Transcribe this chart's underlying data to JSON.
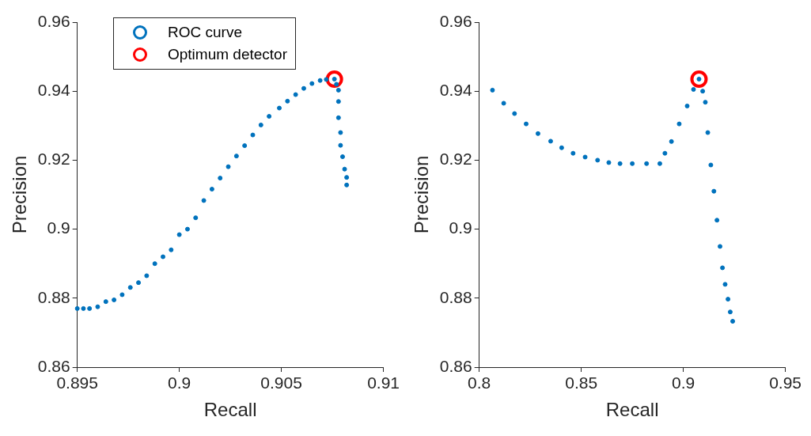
{
  "chart_data": [
    {
      "type": "scatter",
      "xlabel": "Recall",
      "ylabel": "Precision",
      "xlim": [
        0.895,
        0.91
      ],
      "xticks": [
        0.895,
        0.9,
        0.905,
        0.91
      ],
      "ylim": [
        0.86,
        0.96
      ],
      "yticks": [
        0.86,
        0.88,
        0.9,
        0.92,
        0.94,
        0.96
      ],
      "grid": false,
      "legend": "top left",
      "marker": "circle",
      "series": [
        {
          "name": "ROC curve",
          "color": "#0072bd",
          "x": [
            0.895,
            0.8953,
            0.8956,
            0.896,
            0.8964,
            0.8968,
            0.8972,
            0.8976,
            0.898,
            0.8984,
            0.8988,
            0.8992,
            0.8996,
            0.9,
            0.9004,
            0.9008,
            0.9012,
            0.9016,
            0.902,
            0.9024,
            0.9028,
            0.9032,
            0.9036,
            0.904,
            0.9044,
            0.9049,
            0.9053,
            0.9057,
            0.9061,
            0.9065,
            0.9069,
            0.9072,
            0.9076,
            0.9077,
            0.9078,
            0.9078,
            0.9078,
            0.9079,
            0.9079,
            0.908,
            0.9081,
            0.9082,
            0.9082
          ],
          "values": [
            0.877,
            0.877,
            0.877,
            0.8775,
            0.879,
            0.8795,
            0.881,
            0.8831,
            0.8845,
            0.8865,
            0.89,
            0.892,
            0.894,
            0.8984,
            0.9,
            0.9033,
            0.9083,
            0.9116,
            0.9148,
            0.9181,
            0.9212,
            0.9242,
            0.9273,
            0.9302,
            0.9327,
            0.9351,
            0.9371,
            0.939,
            0.9408,
            0.9422,
            0.9431,
            0.9434,
            0.9435,
            0.942,
            0.9403,
            0.937,
            0.9323,
            0.928,
            0.9243,
            0.921,
            0.9174,
            0.915,
            0.9128
          ]
        },
        {
          "name": "Optimum detector",
          "color": "#ff0000",
          "x": [
            0.9076
          ],
          "values": [
            0.9435
          ]
        }
      ]
    },
    {
      "type": "scatter",
      "xlabel": "Recall",
      "ylabel": "Precision",
      "xlim": [
        0.8,
        0.95
      ],
      "xticks": [
        0.8,
        0.85,
        0.9,
        0.95
      ],
      "ylim": [
        0.86,
        0.96
      ],
      "yticks": [
        0.86,
        0.88,
        0.9,
        0.92,
        0.94,
        0.96
      ],
      "grid": false,
      "marker": "circle",
      "series": [
        {
          "color": "#0072bd",
          "x": [
            0.8065,
            0.812,
            0.8173,
            0.823,
            0.8288,
            0.835,
            0.8404,
            0.846,
            0.8519,
            0.858,
            0.8635,
            0.869,
            0.875,
            0.882,
            0.8885,
            0.891,
            0.8942,
            0.898,
            0.9019,
            0.905,
            0.9077,
            0.9095,
            0.9108,
            0.912,
            0.9135,
            0.915,
            0.9165,
            0.918,
            0.9192,
            0.9205,
            0.9219,
            0.923,
            0.9242
          ],
          "values": [
            0.9403,
            0.9365,
            0.9335,
            0.9305,
            0.9277,
            0.9255,
            0.9236,
            0.922,
            0.9209,
            0.92,
            0.9193,
            0.919,
            0.919,
            0.919,
            0.919,
            0.922,
            0.9254,
            0.9305,
            0.9357,
            0.9405,
            0.9435,
            0.94,
            0.9368,
            0.928,
            0.9186,
            0.911,
            0.9026,
            0.895,
            0.8888,
            0.884,
            0.8797,
            0.876,
            0.8733
          ]
        },
        {
          "color": "#ff0000",
          "x": [
            0.9077
          ],
          "values": [
            0.9435
          ]
        }
      ]
    }
  ]
}
